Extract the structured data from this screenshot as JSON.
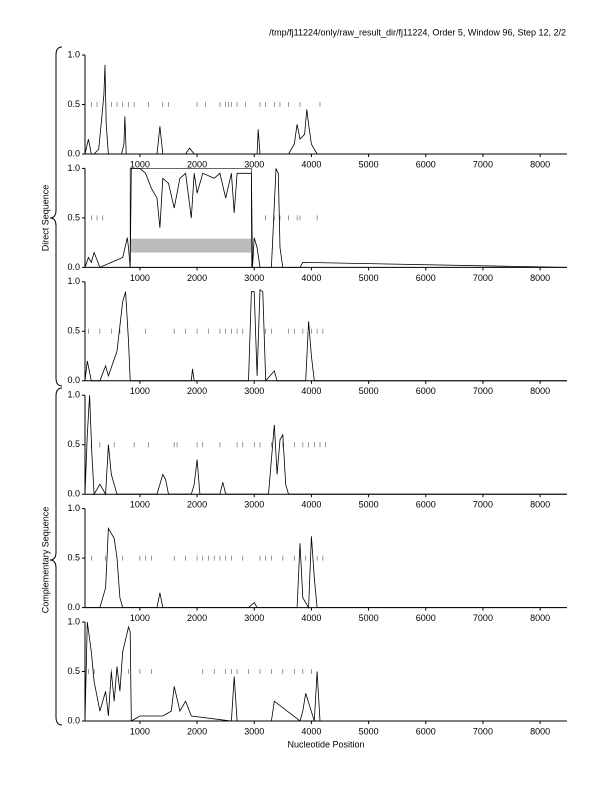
{
  "header": "/tmp/fj11224/only/raw_result_dir/fj11224, Order 5, Window 96, Step 12, 2/2",
  "group_labels": [
    "Direct Sequence",
    "Complementary Sequence"
  ],
  "x_label": "Nucleotide Position",
  "chart_data": [
    {
      "type": "line",
      "color": "#000000",
      "xlim": [
        40,
        8470
      ],
      "ylim": [
        0,
        1
      ],
      "xticks": [
        1000,
        2000,
        3000,
        4000,
        5000,
        6000,
        7000,
        8000
      ],
      "yticks": [
        {
          "value": 0,
          "label": "0.0"
        },
        0.5,
        {
          "value": 1,
          "label": "1.0"
        }
      ],
      "x": [
        40,
        100,
        150,
        200,
        280,
        330,
        370,
        390,
        410,
        450,
        600,
        680,
        720,
        737,
        760,
        900,
        1300,
        1350,
        1400,
        1800,
        1870,
        1950,
        2900,
        3050,
        3070,
        3100,
        3600,
        3700,
        3750,
        3800,
        3880,
        3920,
        3950,
        4000,
        4100,
        8470
      ],
      "values": [
        0,
        0.15,
        0,
        0,
        0.05,
        0.35,
        0.6,
        0.9,
        0.3,
        0,
        0,
        0,
        0.1,
        0.38,
        0,
        0,
        0,
        0.28,
        0,
        0,
        0.06,
        0,
        0,
        0,
        0.25,
        0,
        0,
        0.1,
        0.3,
        0.15,
        0.2,
        0.45,
        0.3,
        0.1,
        0,
        0
      ],
      "markers": [
        150,
        250,
        500,
        600,
        700,
        800,
        900,
        1150,
        1400,
        1500,
        2000,
        2150,
        2400,
        2500,
        2550,
        2600,
        2700,
        2850,
        3100,
        3200,
        3350,
        3450,
        3600,
        3800,
        4150
      ]
    },
    {
      "type": "line",
      "color": "#000000",
      "xlim": [
        40,
        8470
      ],
      "ylim": [
        0,
        1
      ],
      "xticks": [
        1000,
        2000,
        3000,
        4000,
        5000,
        6000,
        7000,
        8000
      ],
      "yticks": [
        {
          "value": 0,
          "label": "0.0"
        },
        0.5,
        {
          "value": 1,
          "label": "1.0"
        }
      ],
      "x": [
        40,
        100,
        150,
        200,
        300,
        500,
        700,
        780,
        800,
        830,
        850,
        1000,
        1100,
        1200,
        1300,
        1350,
        1400,
        1500,
        1600,
        1700,
        1800,
        1900,
        1950,
        2000,
        2100,
        2300,
        2400,
        2500,
        2600,
        2650,
        2700,
        2800,
        2950,
        2970,
        3000,
        3050,
        3100,
        3300,
        3380,
        3420,
        3450,
        3500,
        3800,
        3850,
        8470
      ],
      "values": [
        0,
        0.1,
        0.05,
        0.15,
        0,
        0.05,
        0.1,
        0.3,
        0.2,
        0,
        1.0,
        1.0,
        0.95,
        0.8,
        0.7,
        0.4,
        0.9,
        0.85,
        0.6,
        0.9,
        0.95,
        0.5,
        0.95,
        0.75,
        0.95,
        0.9,
        0.95,
        0.7,
        0.95,
        0.55,
        0.95,
        0.95,
        0.95,
        0,
        0.3,
        0.2,
        0,
        0,
        1.0,
        0.95,
        0.2,
        0,
        0,
        0.05,
        0
      ],
      "markers": [
        150,
        250,
        350,
        3200,
        3350,
        3450,
        3600,
        3750,
        3800,
        4100
      ],
      "highlight": [
        830,
        2950
      ]
    },
    {
      "type": "line",
      "color": "#000000",
      "xlim": [
        40,
        8470
      ],
      "ylim": [
        0,
        1
      ],
      "xticks": [
        1000,
        2000,
        3000,
        4000,
        5000,
        6000,
        7000,
        8000
      ],
      "yticks": [
        {
          "value": 0,
          "label": "0.0"
        },
        0.5,
        {
          "value": 1,
          "label": "1.0"
        }
      ],
      "x": [
        40,
        80,
        150,
        300,
        400,
        450,
        600,
        700,
        750,
        800,
        830,
        1900,
        1920,
        1950,
        2900,
        2950,
        3000,
        3050,
        3100,
        3150,
        3200,
        3350,
        3400,
        3900,
        3950,
        4000,
        4050,
        8470
      ],
      "values": [
        0,
        0.2,
        0,
        0,
        0.15,
        0.05,
        0.3,
        0.8,
        0.9,
        0.4,
        0,
        0,
        0.12,
        0,
        0,
        0.9,
        0.9,
        0.05,
        0.92,
        0.9,
        0,
        0.1,
        0,
        0,
        0.6,
        0.25,
        0,
        0
      ],
      "markers": [
        100,
        300,
        500,
        650,
        1100,
        1600,
        1800,
        2000,
        2200,
        2400,
        2500,
        2600,
        2700,
        2800,
        3200,
        3300,
        3600,
        3700,
        3850,
        4000,
        4100,
        4200
      ]
    },
    {
      "type": "line",
      "color": "#000000",
      "xlim": [
        40,
        8470
      ],
      "ylim": [
        0,
        1
      ],
      "xticks": [
        1000,
        2000,
        3000,
        4000,
        5000,
        6000,
        7000,
        8000
      ],
      "yticks": [
        {
          "value": 0,
          "label": "0.0"
        },
        0.5,
        {
          "value": 1,
          "label": "1.0"
        }
      ],
      "x": [
        40,
        80,
        120,
        160,
        200,
        300,
        400,
        450,
        500,
        600,
        1300,
        1400,
        1450,
        1500,
        1900,
        1950,
        2000,
        2050,
        2400,
        2450,
        2500,
        3250,
        3300,
        3350,
        3400,
        3450,
        3500,
        3550,
        3600,
        8470
      ],
      "values": [
        0,
        0.6,
        1.0,
        0.4,
        0,
        0.1,
        0,
        0.5,
        0.2,
        0,
        0,
        0.2,
        0.15,
        0,
        0,
        0.1,
        0.35,
        0,
        0,
        0.12,
        0,
        0,
        0.35,
        0.7,
        0.2,
        0.55,
        0.6,
        0.1,
        0,
        0
      ],
      "markers": [
        150,
        300,
        550,
        900,
        1150,
        1600,
        1650,
        2000,
        2100,
        2400,
        2700,
        2800,
        3000,
        3100,
        3300,
        3500,
        3700,
        3850,
        3950,
        4050,
        4150,
        4250
      ]
    },
    {
      "type": "line",
      "color": "#000000",
      "xlim": [
        40,
        8470
      ],
      "ylim": [
        0,
        1
      ],
      "xticks": [
        1000,
        2000,
        3000,
        4000,
        5000,
        6000,
        7000,
        8000
      ],
      "yticks": [
        {
          "value": 0,
          "label": "0.0"
        },
        0.5,
        {
          "value": 1,
          "label": "1.0"
        }
      ],
      "x": [
        40,
        300,
        400,
        450,
        500,
        550,
        600,
        650,
        700,
        800,
        1300,
        1350,
        1400,
        2900,
        3000,
        3050,
        3750,
        3800,
        3850,
        3950,
        4000,
        4050,
        4100,
        8470
      ],
      "values": [
        0,
        0,
        0.2,
        0.8,
        0.75,
        0.7,
        0.5,
        0.1,
        0,
        0,
        0,
        0.15,
        0,
        0,
        0.05,
        0,
        0,
        0.65,
        0.1,
        0,
        0.72,
        0.3,
        0,
        0
      ],
      "markers": [
        150,
        400,
        700,
        1000,
        1100,
        1200,
        1600,
        1800,
        2000,
        2100,
        2200,
        2300,
        2400,
        2500,
        2600,
        2800,
        3100,
        3200,
        3300,
        3500,
        3700,
        3900,
        4100,
        4200
      ]
    },
    {
      "type": "line",
      "color": "#000000",
      "xlim": [
        40,
        8470
      ],
      "ylim": [
        0,
        1
      ],
      "xticks": [
        1000,
        2000,
        3000,
        4000,
        5000,
        6000,
        7000,
        8000
      ],
      "yticks": [
        {
          "value": 0,
          "label": "0.0"
        },
        0.5,
        {
          "value": 1,
          "label": "1.0"
        }
      ],
      "x": [
        40,
        80,
        150,
        200,
        300,
        400,
        450,
        500,
        550,
        600,
        650,
        700,
        800,
        830,
        850,
        1000,
        1400,
        1550,
        1600,
        1700,
        1800,
        1900,
        2600,
        2650,
        2700,
        3300,
        3350,
        3800,
        3850,
        3900,
        4050,
        4100,
        4150,
        8470
      ],
      "values": [
        0,
        1.0,
        0.7,
        0.4,
        0.1,
        0.3,
        0.05,
        0.5,
        0.2,
        0.55,
        0.3,
        0.7,
        0.95,
        0.9,
        0,
        0.05,
        0.05,
        0.1,
        0.35,
        0.1,
        0.2,
        0.05,
        0,
        0.45,
        0,
        0,
        0.2,
        0,
        0.1,
        0.28,
        0,
        0.5,
        0,
        0
      ],
      "markers": [
        100,
        200,
        500,
        800,
        1000,
        1200,
        2100,
        2300,
        2500,
        2600,
        2700,
        2900,
        3100,
        3300,
        3500,
        3700,
        3850,
        4000
      ]
    }
  ]
}
